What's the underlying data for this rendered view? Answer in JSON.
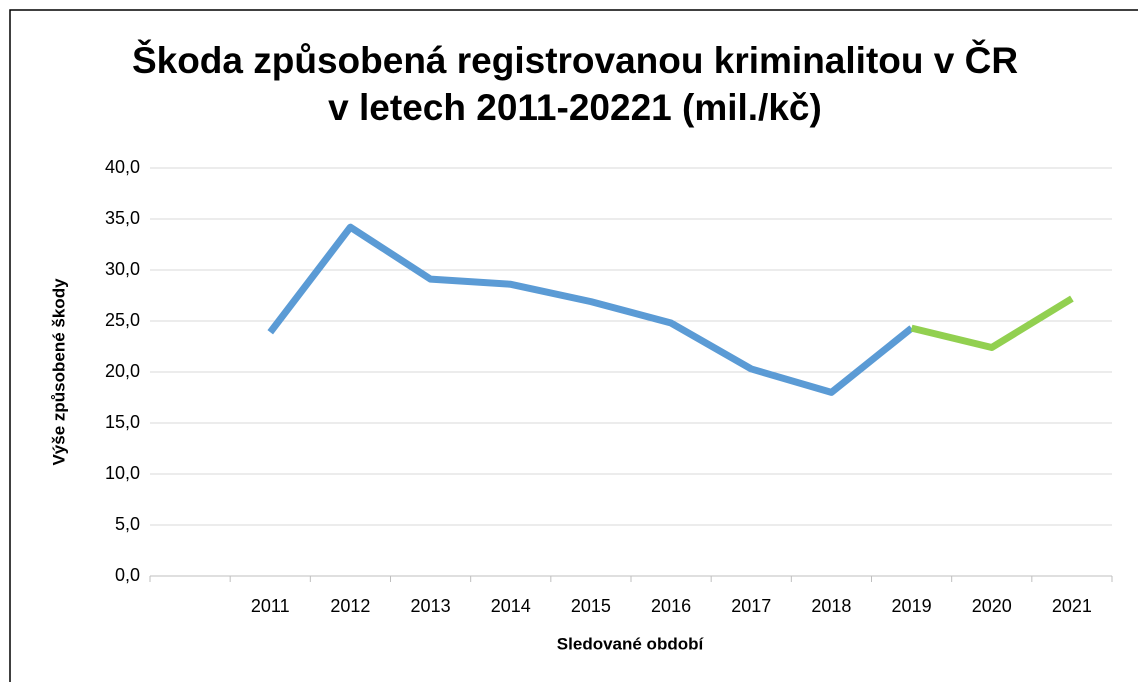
{
  "chart_data": {
    "type": "line",
    "title": [
      "Škoda způsobená registrovanou kriminalitou v ČR",
      "v letech 2011-20221 (mil./kč)"
    ],
    "x_label": "Sledované období",
    "y_label": "Výše způsobené škody",
    "categories": [
      null,
      "2011",
      "2012",
      "2013",
      "2014",
      "2015",
      "2016",
      "2017",
      "2018",
      "2019",
      "2020",
      "2021"
    ],
    "series": [
      {
        "color": "#5b9bd5",
        "values": [
          null,
          23.9,
          34.2,
          29.1,
          28.6,
          26.9,
          24.8,
          20.3,
          18.0,
          24.3,
          null,
          null
        ]
      },
      {
        "color": "#92d050",
        "values": [
          null,
          null,
          null,
          null,
          null,
          null,
          null,
          null,
          null,
          24.3,
          22.4,
          27.2
        ]
      }
    ],
    "ylim": [
      0,
      40
    ],
    "yticks": [
      {
        "value": 0,
        "label": "0,0"
      },
      {
        "value": 5,
        "label": "5,0"
      },
      {
        "value": 10,
        "label": "10,0"
      },
      {
        "value": 15,
        "label": "15,0"
      },
      {
        "value": 20,
        "label": "20,0"
      },
      {
        "value": 25,
        "label": "25,0"
      },
      {
        "value": 30,
        "label": "30,0"
      },
      {
        "value": 35,
        "label": "35,0"
      },
      {
        "value": 40,
        "label": "40,0"
      }
    ],
    "grid": true
  }
}
